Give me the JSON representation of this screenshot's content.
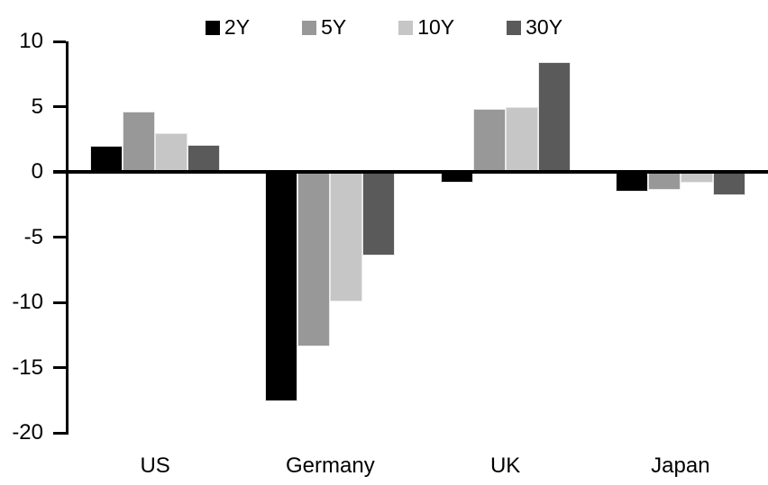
{
  "chart_data": {
    "type": "bar",
    "title": "",
    "xlabel": "",
    "ylabel": "",
    "categories": [
      "US",
      "Germany",
      "UK",
      "Japan"
    ],
    "series": [
      {
        "name": "2Y",
        "color": "#000000",
        "values": [
          2.0,
          -17.6,
          -0.8,
          -1.5
        ]
      },
      {
        "name": "5Y",
        "color": "#989898",
        "values": [
          4.6,
          -13.4,
          4.8,
          -1.4
        ]
      },
      {
        "name": "10Y",
        "color": "#c6c6c6",
        "values": [
          3.0,
          -9.9,
          5.0,
          -0.8
        ]
      },
      {
        "name": "30Y",
        "color": "#5a5a5a",
        "values": [
          2.1,
          -6.4,
          8.4,
          -1.8
        ]
      }
    ],
    "ylim": [
      -20,
      10
    ],
    "yticks": [
      10,
      5,
      0,
      -5,
      -10,
      -15,
      -20
    ],
    "grid": false,
    "legend_position": "top",
    "axis_color": "#000000",
    "background_color": "#ffffff"
  }
}
